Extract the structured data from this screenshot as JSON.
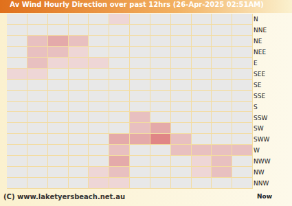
{
  "chart_data": {
    "type": "heatmap",
    "title": "Av Wind Hourly Direction over past 12hrs (26-Apr-2025 02:51AM)",
    "footer": "(C) www.laketyersbeach.net.au",
    "now_label": "Now",
    "categories": [
      "N",
      "NNE",
      "NE",
      "NEE",
      "E",
      "SEE",
      "SE",
      "SSE",
      "S",
      "SSW",
      "SW",
      "SWW",
      "W",
      "NWW",
      "NW",
      "NNW"
    ],
    "cells": [
      [
        0,
        0,
        0,
        0,
        0,
        1,
        0,
        0,
        0,
        0,
        0,
        0
      ],
      [
        0,
        0,
        0,
        0,
        0,
        0,
        0,
        0,
        0,
        0,
        0,
        0
      ],
      [
        0,
        2,
        3,
        2,
        0,
        0,
        0,
        0,
        0,
        0,
        0,
        0
      ],
      [
        0,
        2,
        2,
        1,
        0,
        0,
        0,
        0,
        0,
        0,
        0,
        0
      ],
      [
        0,
        2,
        1,
        1,
        1,
        0,
        0,
        0,
        0,
        0,
        0,
        0
      ],
      [
        1,
        1,
        0,
        0,
        0,
        0,
        0,
        0,
        0,
        0,
        0,
        0
      ],
      [
        0,
        0,
        0,
        0,
        0,
        0,
        0,
        0,
        0,
        0,
        0,
        0
      ],
      [
        0,
        0,
        0,
        0,
        0,
        0,
        0,
        0,
        0,
        0,
        0,
        0
      ],
      [
        0,
        0,
        0,
        0,
        0,
        0,
        0,
        0,
        0,
        0,
        0,
        0
      ],
      [
        0,
        0,
        0,
        0,
        0,
        0,
        2,
        0,
        0,
        0,
        0,
        0
      ],
      [
        0,
        0,
        0,
        0,
        0,
        0,
        2,
        3,
        0,
        0,
        0,
        0
      ],
      [
        0,
        0,
        0,
        0,
        0,
        3,
        3,
        4,
        2,
        0,
        0,
        0
      ],
      [
        0,
        0,
        0,
        0,
        0,
        2,
        0,
        0,
        2,
        2,
        2,
        2
      ],
      [
        0,
        0,
        0,
        0,
        0,
        3,
        0,
        0,
        0,
        1,
        2,
        0
      ],
      [
        0,
        0,
        0,
        0,
        1,
        2,
        0,
        0,
        0,
        1,
        2,
        0
      ],
      [
        0,
        0,
        0,
        0,
        1,
        1,
        0,
        0,
        0,
        0,
        0,
        0
      ]
    ],
    "zlim": [
      0,
      4
    ],
    "tick_labels": "y"
  }
}
